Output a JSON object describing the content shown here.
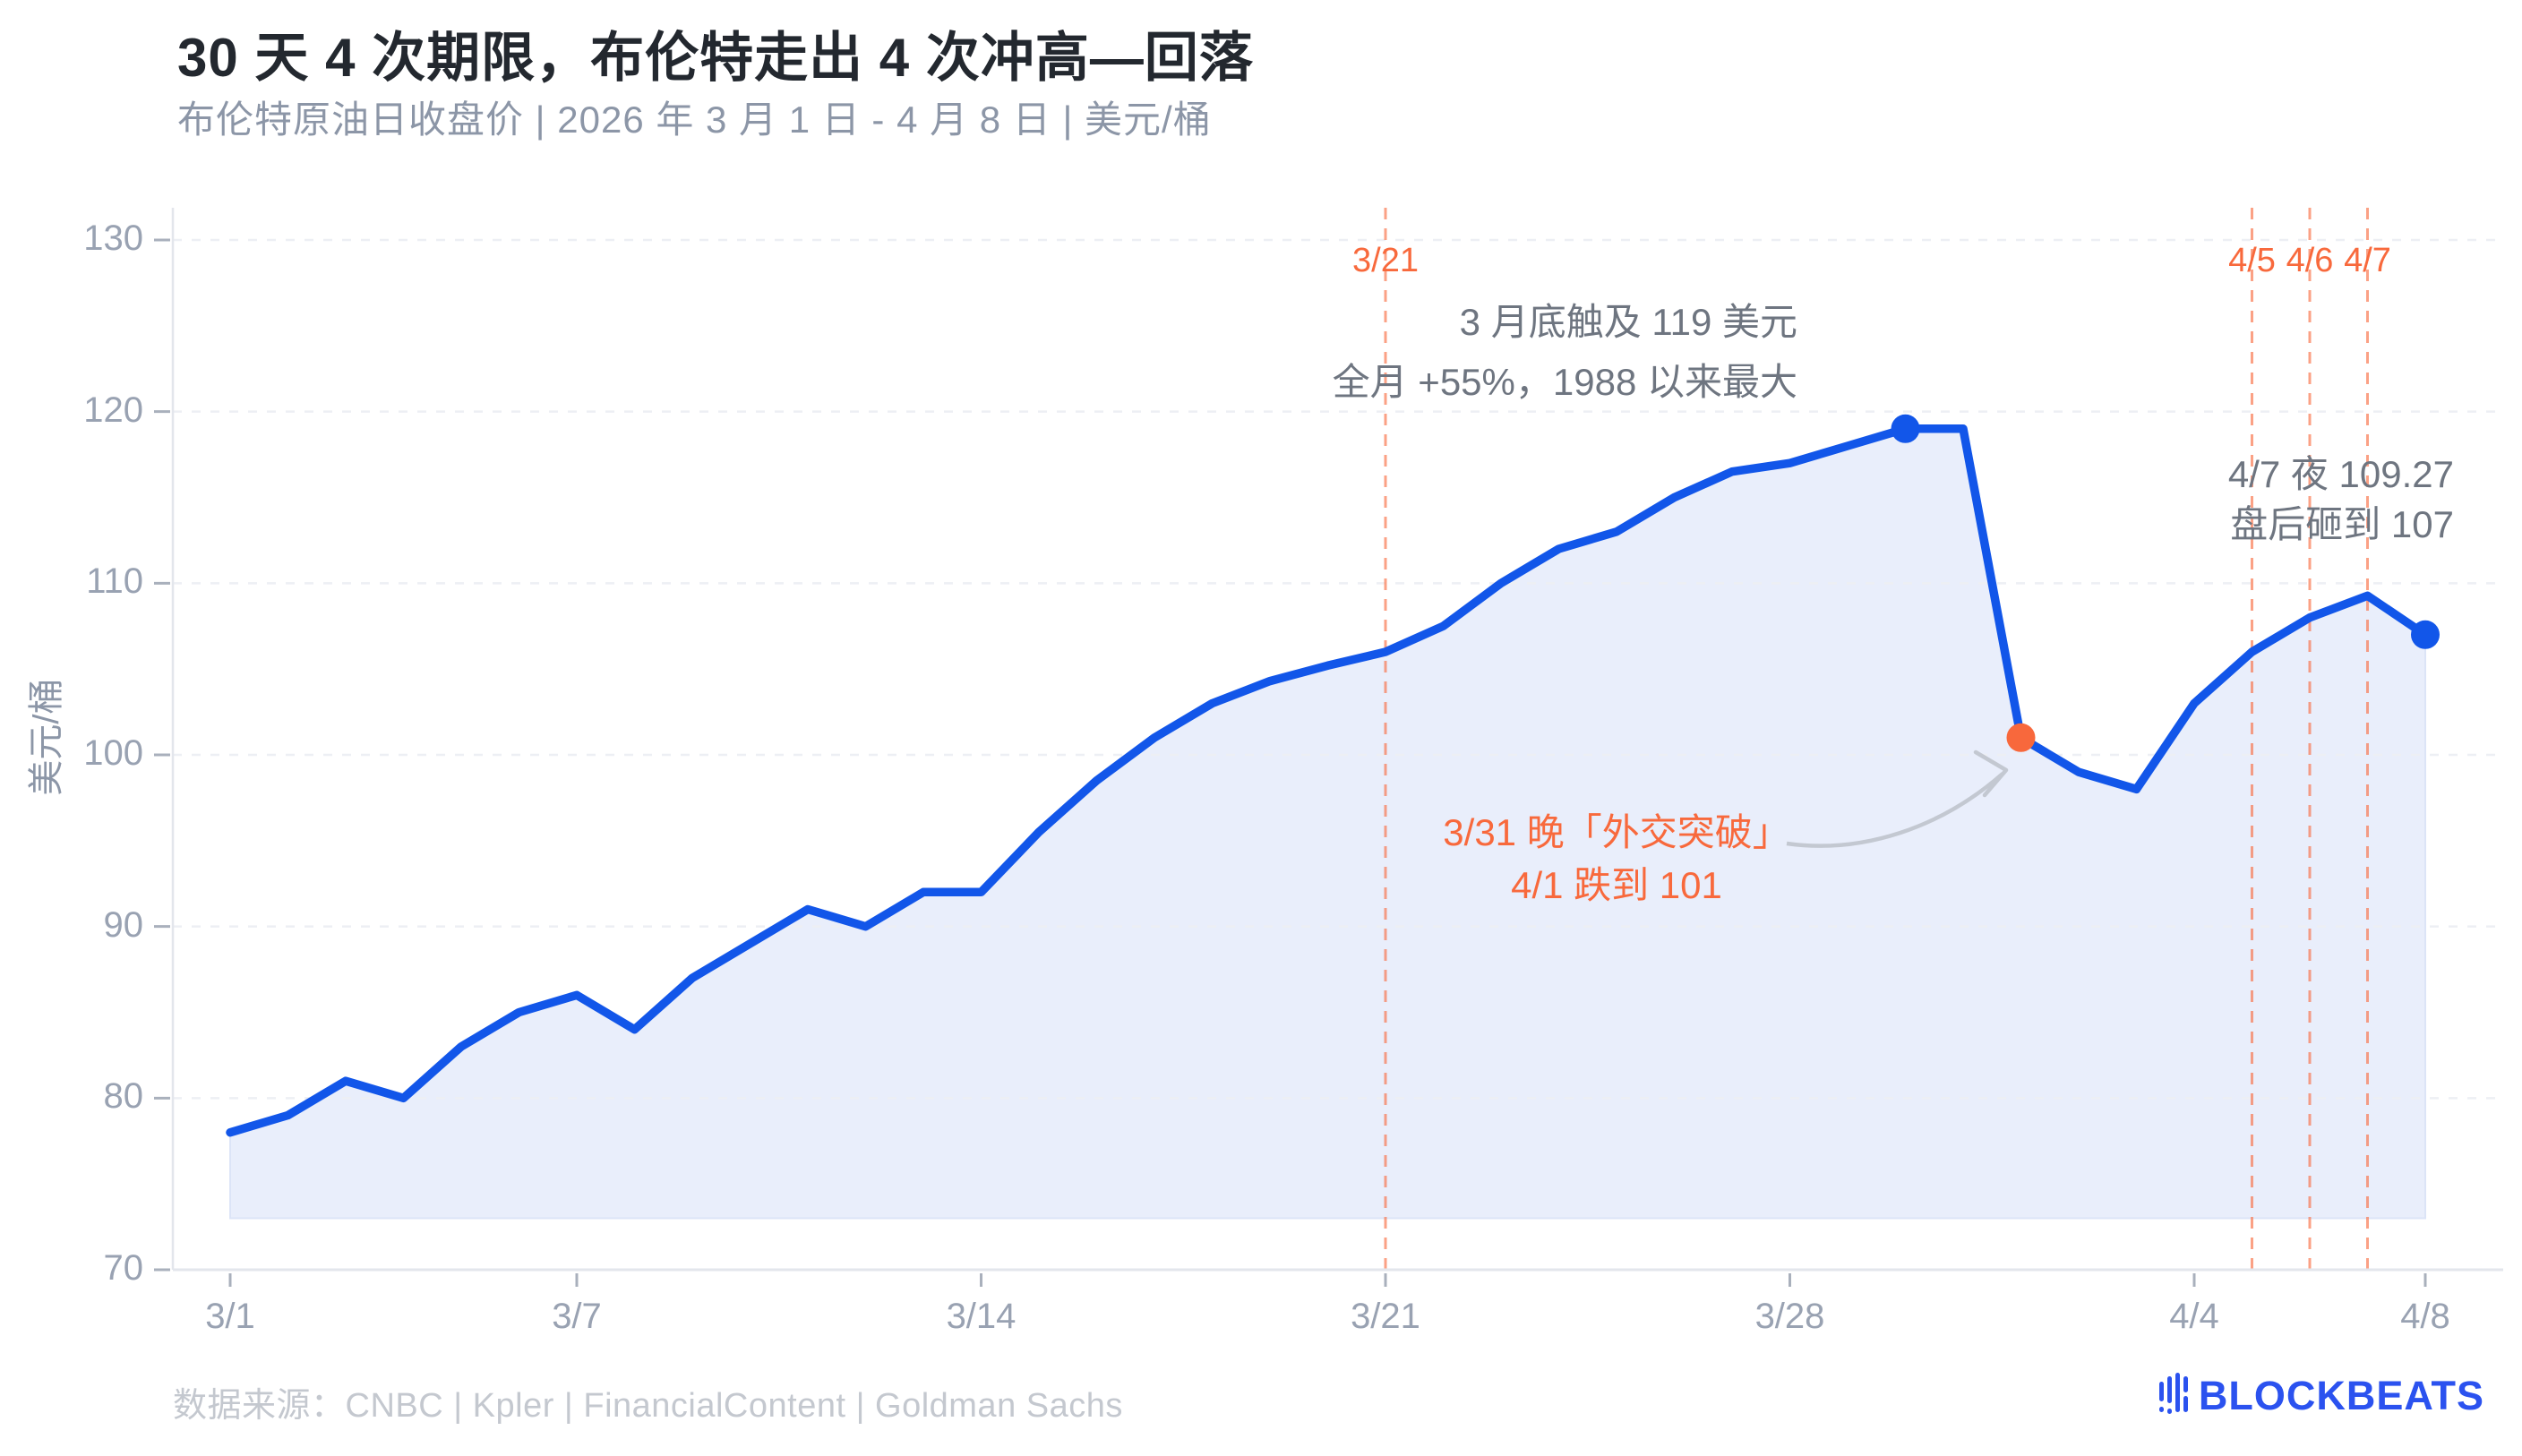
{
  "header": {
    "title": "30 天 4 次期限，布伦特走出 4 次冲高—回落",
    "subtitle": "布伦特原油日收盘价 | 2026 年 3 月 1 日 - 4 月 8 日 | 美元/桶"
  },
  "footer": {
    "source": "数据来源：CNBC | Kpler | FinancialContent | Goldman Sachs",
    "brand": "BLOCKBEATS"
  },
  "chart_data": {
    "type": "area",
    "title": "30 天 4 次期限，布伦特走出 4 次冲高—回落",
    "subtitle": "布伦特原油日收盘价 | 2026 年 3 月 1 日 - 4 月 8 日 | 美元/桶",
    "ylabel": "美元/桶",
    "ylim": [
      70,
      130
    ],
    "y_ticks": [
      70,
      80,
      90,
      100,
      110,
      120,
      130
    ],
    "x_ticks": [
      "3/1",
      "3/7",
      "3/14",
      "3/21",
      "3/28",
      "4/4",
      "4/8"
    ],
    "grid": true,
    "area_baseline": 73,
    "x": [
      "3/1",
      "3/2",
      "3/3",
      "3/4",
      "3/5",
      "3/6",
      "3/7",
      "3/8",
      "3/9",
      "3/10",
      "3/11",
      "3/12",
      "3/13",
      "3/14",
      "3/15",
      "3/16",
      "3/17",
      "3/18",
      "3/19",
      "3/20",
      "3/21",
      "3/22",
      "3/23",
      "3/24",
      "3/25",
      "3/26",
      "3/27",
      "3/28",
      "3/29",
      "3/30",
      "3/31",
      "4/1",
      "4/2",
      "4/3",
      "4/4",
      "4/5",
      "4/6",
      "4/7",
      "4/8"
    ],
    "values": [
      78,
      79,
      81,
      80,
      83,
      85,
      86,
      84,
      87,
      89,
      91,
      90,
      92,
      92,
      95.5,
      98.5,
      101,
      103,
      104.3,
      105.2,
      106,
      107.5,
      110,
      112,
      113,
      115,
      116.5,
      117,
      118,
      119,
      119,
      101,
      99,
      98,
      103,
      106,
      108,
      109.27,
      107
    ],
    "markers": [
      {
        "date": "3/30",
        "value": 119,
        "color": "#1256E9"
      },
      {
        "date": "4/1",
        "value": 101,
        "color": "#F8683C"
      },
      {
        "date": "4/8",
        "value": 107,
        "color": "#1256E9"
      }
    ],
    "event_lines": [
      {
        "date": "3/21",
        "label": "3/21"
      },
      {
        "date": "4/5",
        "label": "4/5"
      },
      {
        "date": "4/6",
        "label": "4/6"
      },
      {
        "date": "4/7",
        "label": "4/7"
      }
    ],
    "annotations": {
      "peak": {
        "lines": [
          "3 月底触及 119 美元",
          "全月 +55%，1988 以来最大"
        ]
      },
      "close": {
        "lines": [
          "4/7 夜 109.27",
          "盘后砸到 107"
        ]
      },
      "drop": {
        "lines": [
          "3/31 晚「外交突破」",
          "4/1 跌到 101"
        ]
      }
    },
    "colors": {
      "line": "#1256E9",
      "area": "#E9EEFB",
      "area_border": "#DCE4F7",
      "grid": "#EDEFF4",
      "axis": "#E3E6EC",
      "tick": "#A9B0BC",
      "axis_label": "#99A2B2",
      "event_line": "rgba(249,110,68,0.65)",
      "event_label": "#F8693C",
      "annotation_gray": "#6E7580",
      "annotation_orange": "#F8693C",
      "arrow": "#C3C8D1"
    }
  }
}
